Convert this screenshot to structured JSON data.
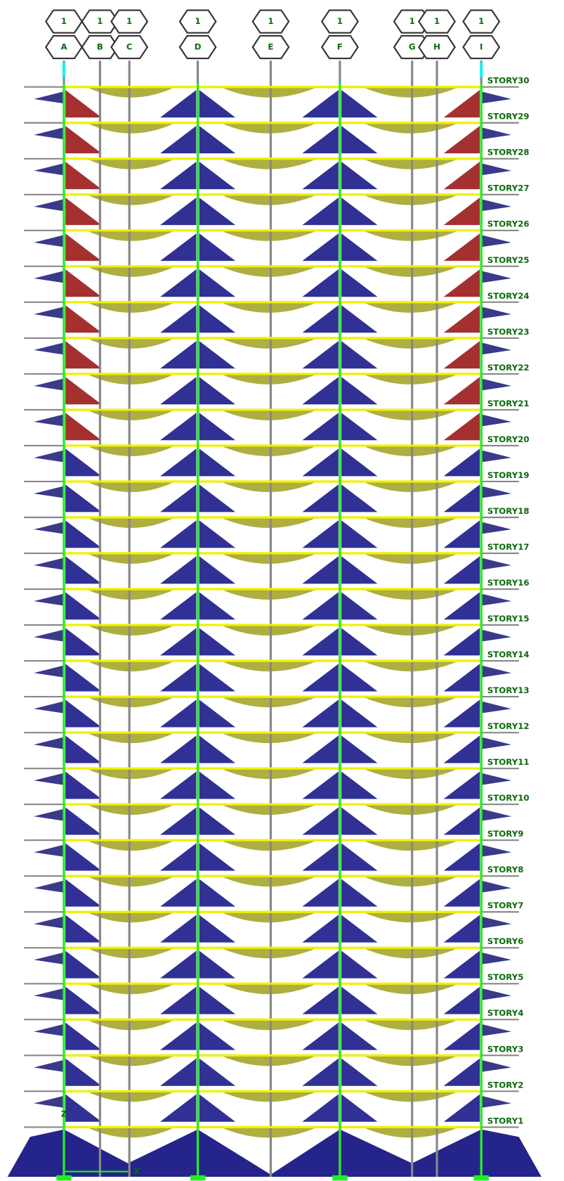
{
  "grid_bubbles": [
    {
      "top": "1",
      "bottom": "A"
    },
    {
      "top": "1",
      "bottom": "B"
    },
    {
      "top": "1",
      "bottom": "C"
    },
    {
      "top": "1",
      "bottom": "D"
    },
    {
      "top": "1",
      "bottom": "E"
    },
    {
      "top": "1",
      "bottom": "F"
    },
    {
      "top": "1",
      "bottom": "G"
    },
    {
      "top": "1",
      "bottom": "H"
    },
    {
      "top": "1",
      "bottom": "I"
    }
  ],
  "stories": [
    "STORY30",
    "STORY29",
    "STORY28",
    "STORY27",
    "STORY26",
    "STORY25",
    "STORY24",
    "STORY23",
    "STORY22",
    "STORY21",
    "STORY20",
    "STORY19",
    "STORY18",
    "STORY17",
    "STORY16",
    "STORY15",
    "STORY14",
    "STORY13",
    "STORY12",
    "STORY11",
    "STORY10",
    "STORY9",
    "STORY8",
    "STORY7",
    "STORY6",
    "STORY5",
    "STORY4",
    "STORY3",
    "STORY2",
    "STORY1"
  ],
  "axes": {
    "x": "X",
    "z": "Z"
  }
}
